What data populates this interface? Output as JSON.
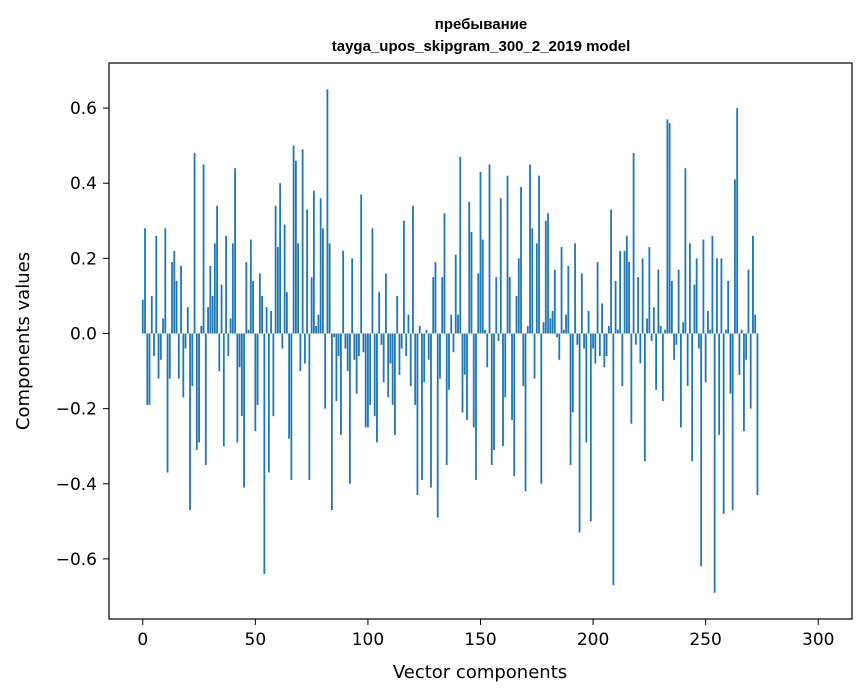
{
  "chart_data": {
    "type": "bar",
    "title_line1": "пребывание",
    "title_line2": "tayga_upos_skipgram_300_2_2019 model",
    "xlabel": "Vector components",
    "ylabel": "Components values",
    "xlim": [
      -15,
      315
    ],
    "ylim": [
      -0.76,
      0.72
    ],
    "x_ticks": [
      0,
      50,
      100,
      150,
      200,
      250,
      300
    ],
    "x_tick_labels": [
      "0",
      "50",
      "100",
      "150",
      "200",
      "250",
      "300"
    ],
    "y_ticks": [
      0.6,
      0.4,
      0.2,
      0.0,
      -0.2,
      -0.4,
      -0.6
    ],
    "y_tick_labels": [
      "0.6",
      "0.4",
      "0.2",
      "0.0",
      "−0.2",
      "−0.4",
      "−0.6"
    ],
    "bar_color": "#1f77b4",
    "grid": false,
    "values": [
      0.09,
      0.28,
      -0.19,
      -0.19,
      0.1,
      -0.06,
      0.26,
      -0.12,
      -0.07,
      0.04,
      0.28,
      -0.37,
      -0.12,
      0.19,
      0.22,
      0.14,
      -0.12,
      0.18,
      -0.17,
      -0.04,
      0.07,
      -0.47,
      -0.14,
      0.48,
      -0.31,
      -0.29,
      0.02,
      0.45,
      -0.35,
      0.07,
      0.18,
      0.1,
      0.24,
      0.34,
      -0.1,
      0.13,
      -0.3,
      0.26,
      -0.06,
      0.04,
      0.24,
      0.44,
      -0.29,
      -0.09,
      -0.22,
      -0.41,
      0.19,
      0.01,
      0.25,
      0.14,
      -0.26,
      -0.19,
      0.16,
      0.1,
      -0.64,
      0.07,
      -0.37,
      0.06,
      -0.22,
      0.34,
      0.23,
      0.4,
      -0.04,
      0.29,
      0.11,
      -0.28,
      -0.39,
      0.5,
      0.46,
      0.24,
      -0.1,
      0.49,
      -0.08,
      0.33,
      -0.39,
      0.15,
      0.38,
      0.02,
      0.05,
      0.36,
      0.28,
      -0.2,
      0.65,
      0.24,
      -0.47,
      -0.01,
      -0.18,
      -0.06,
      -0.27,
      0.22,
      -0.04,
      -0.1,
      -0.4,
      0.2,
      -0.07,
      -0.16,
      -0.06,
      0.37,
      -0.05,
      -0.25,
      -0.25,
      -0.19,
      0.28,
      -0.22,
      -0.29,
      0.11,
      -0.03,
      -0.13,
      0.16,
      -0.17,
      -0.08,
      -0.19,
      -0.27,
      0.1,
      -0.11,
      -0.04,
      0.3,
      -0.06,
      0.05,
      -0.14,
      0.34,
      -0.19,
      -0.43,
      0.02,
      -0.39,
      -0.13,
      0.01,
      -0.07,
      -0.41,
      0.15,
      0.19,
      -0.49,
      -0.12,
      0.15,
      0.32,
      -0.35,
      -0.15,
      0.05,
      -0.05,
      0.21,
      0.05,
      0.47,
      -0.21,
      -0.11,
      -0.23,
      0.35,
      0.27,
      -0.25,
      -0.39,
      0.16,
      0.43,
      0.25,
      0.01,
      -0.09,
      0.45,
      -0.35,
      -0.31,
      0.15,
      -0.02,
      0.36,
      -0.3,
      -0.17,
      0.42,
      0.15,
      -0.23,
      -0.38,
      0.1,
      0.2,
      0.39,
      -0.14,
      -0.42,
      0.02,
      0.45,
      0.28,
      -0.12,
      0.24,
      0.42,
      -0.4,
      0.03,
      0.3,
      0.32,
      0.04,
      0.06,
      0.17,
      -0.01,
      -0.07,
      0.23,
      0.01,
      0.05,
      0.18,
      -0.35,
      -0.21,
      0.24,
      -0.03,
      -0.53,
      0.16,
      -0.04,
      -0.29,
      0.06,
      -0.5,
      -0.04,
      -0.08,
      0.19,
      -0.06,
      0.08,
      -0.09,
      -0.06,
      0.02,
      0.33,
      -0.67,
      0.14,
      0.01,
      0.22,
      -0.14,
      0.22,
      0.26,
      0.19,
      -0.24,
      0.48,
      -0.03,
      0.15,
      -0.08,
      0.2,
      -0.34,
      0.04,
      0.23,
      -0.02,
      0.07,
      -0.15,
      0.17,
      0.02,
      -0.18,
      0.01,
      0.57,
      0.56,
      0.14,
      -0.07,
      -0.03,
      0.17,
      -0.25,
      0.03,
      0.44,
      -0.14,
      0.24,
      -0.34,
      0.13,
      0.2,
      -0.04,
      -0.62,
      0.25,
      -0.13,
      0.06,
      0.01,
      0.26,
      -0.69,
      0.2,
      -0.27,
      0.2,
      -0.48,
      0.01,
      0.14,
      -0.16,
      -0.47,
      0.41,
      0.6,
      -0.11,
      0.01,
      -0.26,
      -0.07,
      0.17,
      -0.2,
      0.26,
      0.05,
      -0.43
    ]
  }
}
